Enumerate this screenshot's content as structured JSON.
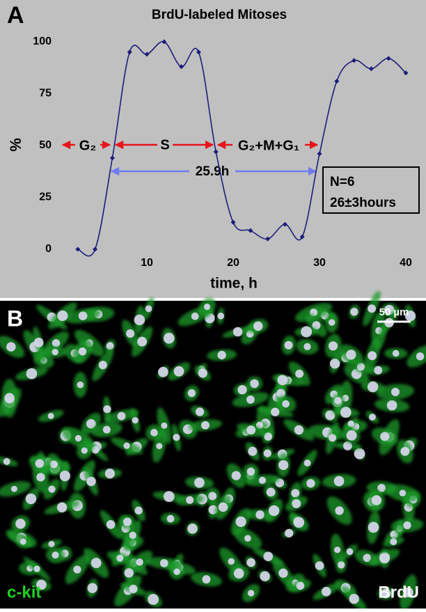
{
  "chart_data": {
    "type": "line",
    "panel_label": "A",
    "title": "BrdU-labeled Mitoses",
    "x_label": "time, h",
    "y_label": "%",
    "x": [
      2,
      4,
      6,
      8,
      10,
      12,
      14,
      16,
      18,
      20,
      22,
      24,
      26,
      28,
      30,
      32,
      34,
      36,
      38,
      40
    ],
    "values": [
      0,
      0,
      44,
      95,
      94,
      100,
      88,
      95,
      47,
      13,
      9,
      5,
      12,
      6,
      46,
      81,
      91,
      87,
      92,
      85
    ],
    "color": "#1c1c7a",
    "xlim": [
      0,
      41
    ],
    "ylim": [
      0,
      100
    ],
    "xticks": [
      10,
      20,
      30,
      40
    ],
    "yticks": [
      0,
      25,
      50,
      75,
      100
    ],
    "annotations": {
      "phases": [
        "G₂",
        "S",
        "G₂+M+G₁"
      ],
      "interval": "25.9h",
      "stats": [
        "N=6",
        "26±3hours"
      ]
    }
  },
  "panel_b": {
    "label": "B",
    "scale_bar": "50 µm",
    "stain_1": "c-kit",
    "stain_2": "BrdU"
  }
}
